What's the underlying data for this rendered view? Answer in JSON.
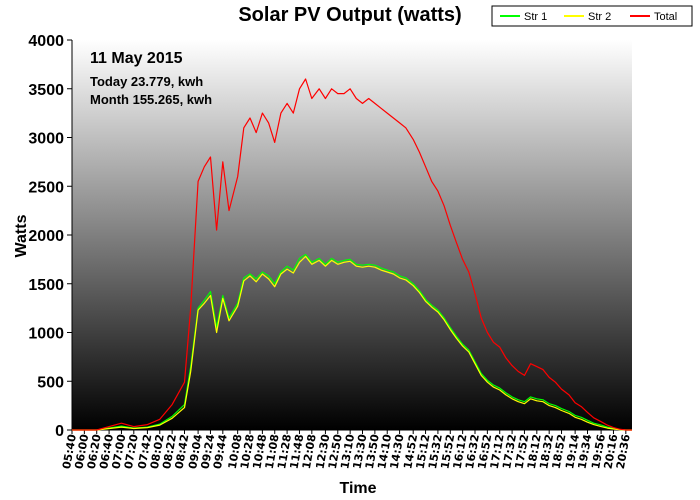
{
  "chart_data": {
    "type": "line",
    "title": "Solar PV Output (watts)",
    "xlabel": "Time",
    "ylabel": "Watts",
    "ylim": [
      0,
      4000
    ],
    "yticks": [
      0,
      500,
      1000,
      1500,
      2000,
      2500,
      3000,
      3500,
      4000
    ],
    "x_ticks": [
      "05:40",
      "06:00",
      "06:20",
      "06:40",
      "07:00",
      "07:20",
      "07:42",
      "08:02",
      "08:22",
      "08:42",
      "09:04",
      "09:24",
      "09:44",
      "10:08",
      "10:28",
      "10:48",
      "11:08",
      "11:28",
      "11:48",
      "12:08",
      "12:30",
      "12:50",
      "13:10",
      "13:30",
      "13:50",
      "14:10",
      "14:30",
      "14:52",
      "15:12",
      "15:32",
      "15:52",
      "16:12",
      "16:32",
      "16:52",
      "17:12",
      "17:32",
      "17:52",
      "18:12",
      "18:32",
      "18:52",
      "19:14",
      "19:34",
      "19:56",
      "20:16",
      "20:36"
    ],
    "annotations": {
      "date": "11 May 2015",
      "today": "Today 23.779, kwh",
      "month": "Month 155.265, kwh"
    },
    "legend_position": "top-right",
    "series": [
      {
        "name": "Str 1",
        "color": "#00ff00",
        "x": [
          "05:40",
          "06:20",
          "07:00",
          "07:20",
          "07:42",
          "08:02",
          "08:22",
          "08:42",
          "08:52",
          "09:04",
          "09:14",
          "09:24",
          "09:34",
          "09:44",
          "09:54",
          "10:08",
          "10:18",
          "10:28",
          "10:38",
          "10:48",
          "10:58",
          "11:08",
          "11:18",
          "11:28",
          "11:38",
          "11:48",
          "11:58",
          "12:08",
          "12:20",
          "12:30",
          "12:40",
          "12:50",
          "13:00",
          "13:10",
          "13:20",
          "13:30",
          "13:40",
          "13:50",
          "14:00",
          "14:10",
          "14:20",
          "14:30",
          "14:40",
          "14:52",
          "15:02",
          "15:12",
          "15:22",
          "15:32",
          "15:42",
          "15:52",
          "16:02",
          "16:12",
          "16:22",
          "16:32",
          "16:42",
          "16:52",
          "17:02",
          "17:12",
          "17:22",
          "17:32",
          "17:42",
          "17:52",
          "18:02",
          "18:12",
          "18:22",
          "18:32",
          "18:42",
          "18:52",
          "19:04",
          "19:14",
          "19:24",
          "19:34",
          "19:44",
          "19:56",
          "20:06",
          "20:16",
          "20:26",
          "20:36",
          "20:46"
        ],
        "values": [
          0,
          0,
          40,
          20,
          30,
          60,
          140,
          260,
          650,
          1250,
          1330,
          1420,
          1050,
          1380,
          1150,
          1300,
          1560,
          1600,
          1550,
          1620,
          1580,
          1500,
          1620,
          1680,
          1640,
          1760,
          1800,
          1720,
          1760,
          1700,
          1760,
          1720,
          1740,
          1750,
          1700,
          1690,
          1700,
          1690,
          1660,
          1640,
          1620,
          1580,
          1560,
          1500,
          1430,
          1340,
          1280,
          1230,
          1150,
          1050,
          960,
          880,
          820,
          700,
          580,
          510,
          460,
          430,
          380,
          340,
          310,
          290,
          340,
          320,
          310,
          270,
          250,
          220,
          190,
          150,
          130,
          100,
          70,
          50,
          30,
          15,
          5,
          0,
          0
        ]
      },
      {
        "name": "Str 2",
        "color": "#ffff00",
        "x": [
          "05:40",
          "06:20",
          "07:00",
          "07:20",
          "07:42",
          "08:02",
          "08:22",
          "08:42",
          "08:52",
          "09:04",
          "09:14",
          "09:24",
          "09:34",
          "09:44",
          "09:54",
          "10:08",
          "10:18",
          "10:28",
          "10:38",
          "10:48",
          "10:58",
          "11:08",
          "11:18",
          "11:28",
          "11:38",
          "11:48",
          "11:58",
          "12:08",
          "12:20",
          "12:30",
          "12:40",
          "12:50",
          "13:00",
          "13:10",
          "13:20",
          "13:30",
          "13:40",
          "13:50",
          "14:00",
          "14:10",
          "14:20",
          "14:30",
          "14:40",
          "14:52",
          "15:02",
          "15:12",
          "15:22",
          "15:32",
          "15:42",
          "15:52",
          "16:02",
          "16:12",
          "16:22",
          "16:32",
          "16:42",
          "16:52",
          "17:02",
          "17:12",
          "17:22",
          "17:32",
          "17:42",
          "17:52",
          "18:02",
          "18:12",
          "18:22",
          "18:32",
          "18:42",
          "18:52",
          "19:04",
          "19:14",
          "19:24",
          "19:34",
          "19:44",
          "19:56",
          "20:06",
          "20:16",
          "20:26",
          "20:36",
          "20:46"
        ],
        "values": [
          0,
          0,
          30,
          15,
          25,
          50,
          120,
          230,
          600,
          1230,
          1300,
          1380,
          1000,
          1350,
          1120,
          1270,
          1530,
          1580,
          1520,
          1600,
          1550,
          1470,
          1600,
          1650,
          1610,
          1720,
          1780,
          1700,
          1740,
          1680,
          1740,
          1700,
          1720,
          1730,
          1680,
          1670,
          1680,
          1670,
          1640,
          1620,
          1600,
          1560,
          1540,
          1480,
          1410,
          1320,
          1260,
          1210,
          1130,
          1030,
          940,
          860,
          800,
          680,
          560,
          490,
          440,
          410,
          360,
          320,
          290,
          270,
          320,
          300,
          290,
          250,
          230,
          200,
          170,
          130,
          110,
          80,
          55,
          35,
          20,
          10,
          3,
          0,
          0
        ]
      },
      {
        "name": "Total",
        "color": "#ff0000",
        "x": [
          "05:40",
          "06:20",
          "07:00",
          "07:20",
          "07:42",
          "08:02",
          "08:22",
          "08:42",
          "08:52",
          "09:04",
          "09:14",
          "09:24",
          "09:34",
          "09:44",
          "09:54",
          "10:08",
          "10:18",
          "10:28",
          "10:38",
          "10:48",
          "10:58",
          "11:08",
          "11:18",
          "11:28",
          "11:38",
          "11:48",
          "11:58",
          "12:08",
          "12:20",
          "12:30",
          "12:40",
          "12:50",
          "13:00",
          "13:10",
          "13:20",
          "13:30",
          "13:40",
          "13:50",
          "14:00",
          "14:10",
          "14:20",
          "14:30",
          "14:40",
          "14:52",
          "15:02",
          "15:12",
          "15:22",
          "15:32",
          "15:42",
          "15:52",
          "16:02",
          "16:12",
          "16:22",
          "16:32",
          "16:42",
          "16:52",
          "17:02",
          "17:12",
          "17:22",
          "17:32",
          "17:42",
          "17:52",
          "18:02",
          "18:12",
          "18:22",
          "18:32",
          "18:42",
          "18:52",
          "19:04",
          "19:14",
          "19:24",
          "19:34",
          "19:44",
          "19:56",
          "20:06",
          "20:16",
          "20:26",
          "20:36",
          "20:46"
        ],
        "values": [
          0,
          0,
          70,
          35,
          55,
          110,
          260,
          490,
          1250,
          2550,
          2700,
          2800,
          2050,
          2750,
          2250,
          2600,
          3100,
          3200,
          3050,
          3250,
          3150,
          2950,
          3250,
          3350,
          3250,
          3500,
          3600,
          3400,
          3500,
          3400,
          3500,
          3450,
          3450,
          3500,
          3400,
          3350,
          3400,
          3350,
          3300,
          3250,
          3200,
          3150,
          3100,
          2980,
          2850,
          2700,
          2550,
          2450,
          2300,
          2100,
          1920,
          1750,
          1620,
          1400,
          1150,
          1000,
          900,
          850,
          740,
          660,
          600,
          560,
          680,
          650,
          620,
          540,
          490,
          420,
          360,
          280,
          240,
          180,
          125,
          85,
          50,
          25,
          8,
          0,
          0
        ]
      }
    ]
  }
}
